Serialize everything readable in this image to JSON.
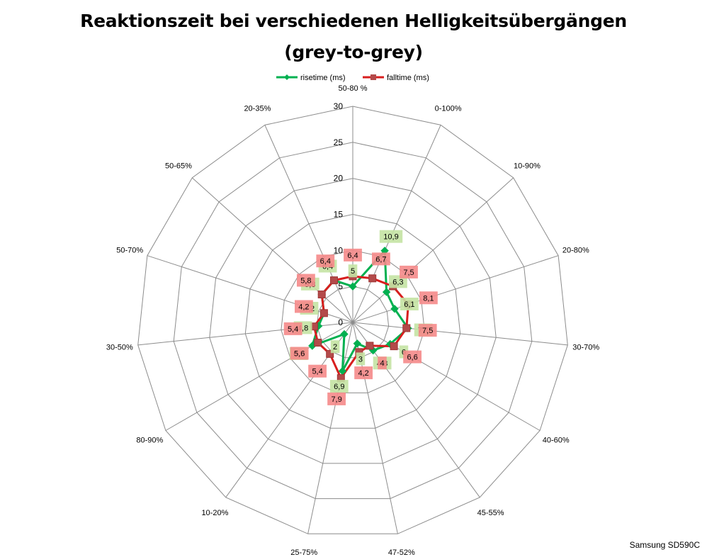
{
  "chart_data": {
    "type": "radar",
    "title_lines": [
      "Reaktionszeit bei verschiedenen Helligkeitsübergängen",
      "(grey-to-grey)"
    ],
    "categories": [
      "50-80 %",
      "0-100%",
      "10-90%",
      "20-80%",
      "30-70%",
      "40-60%",
      "45-55%",
      "47-52%",
      "25-75%",
      "10-20%",
      "80-90%",
      "30-50%",
      "50-70%",
      "50-65%",
      "20-35%"
    ],
    "rlim": [
      0,
      30
    ],
    "rticks": [
      0,
      5,
      10,
      15,
      20,
      25,
      30
    ],
    "rtick_labels": [
      "0",
      "5",
      "10",
      "15",
      "20",
      "25",
      "30"
    ],
    "legend_position": "top",
    "series": [
      {
        "name": "risetime (ms)",
        "color": "#00b050",
        "marker": "diamond",
        "values": [
          5,
          10.9,
          6.3,
          6.1,
          7.7,
          6,
          4.8,
          3,
          6.9,
          2,
          6.5,
          4.8,
          4.2,
          5.8,
          6.4
        ],
        "value_labels": [
          "5",
          "10,9",
          "6,3",
          "6,1",
          "7,7",
          "6",
          "4,8",
          "3",
          "6,9",
          "2",
          "6,5",
          "4,8",
          "4,2",
          "5,8",
          "6,4"
        ],
        "label_bg": "#c4e3a3"
      },
      {
        "name": "falltime (ms)",
        "color": "#d81e1e",
        "marker": "square",
        "values": [
          6.4,
          6.7,
          7.5,
          8.1,
          7.5,
          6.6,
          4,
          4.2,
          7.9,
          5.4,
          5.6,
          5.4,
          4.2,
          5.8,
          6.4
        ],
        "value_labels": [
          "6,4",
          "6,7",
          "7,5",
          "8,1",
          "7,5",
          "6,6",
          "4",
          "4,2",
          "7,9",
          "5,4",
          "5,6",
          "5,4",
          "4,2",
          "5,8",
          "6,4"
        ],
        "label_bg": "#f58a8a"
      }
    ]
  },
  "footer": {
    "text": "Samsung SD590C"
  }
}
